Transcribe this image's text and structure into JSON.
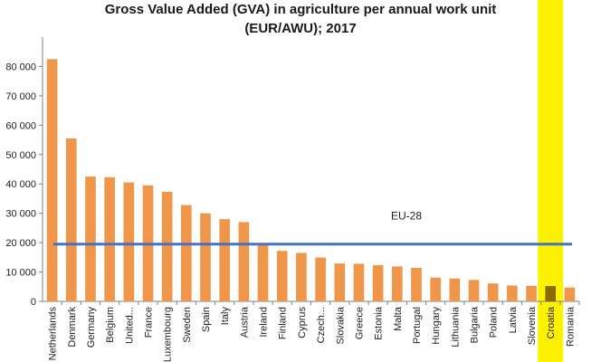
{
  "chart_data": {
    "type": "bar",
    "title_lines": [
      "Gross Value Added (GVA) in agriculture per annual work unit",
      "(EUR/AWU); 2017"
    ],
    "xlabel": "",
    "ylabel": "",
    "ylim": [
      0,
      90000
    ],
    "yticks": [
      "0",
      "10 000",
      "20 000",
      "30 000",
      "40 000",
      "50 000",
      "60 000",
      "70 000",
      "80 000"
    ],
    "ytick_values": [
      0,
      10000,
      20000,
      30000,
      40000,
      50000,
      60000,
      70000,
      80000
    ],
    "categories": [
      "Netherlands",
      "Denmark",
      "Germany",
      "Belgium",
      "United...",
      "France",
      "Luxembourg",
      "Sweden",
      "Spain",
      "Italy",
      "Austria",
      "Ireland",
      "Finland",
      "Cyprus",
      "Czech...",
      "Slovakia",
      "Greece",
      "Estonia",
      "Malta",
      "Portugal",
      "Hungary",
      "Lithuania",
      "Bulgaria",
      "Poland",
      "Latvia",
      "Slovenia",
      "Croatia",
      "Romania"
    ],
    "values": [
      82500,
      55500,
      42500,
      42300,
      40500,
      39500,
      37300,
      32800,
      30000,
      28000,
      27000,
      19300,
      17200,
      16500,
      14900,
      12900,
      12800,
      12300,
      11900,
      11400,
      8100,
      7800,
      7300,
      6100,
      5400,
      5300,
      5200,
      4700
    ],
    "reference_line": {
      "label": "EU-28",
      "value": 19500
    },
    "highlight": "Croatia",
    "colors": {
      "bar": "#F0964B",
      "highlight_band": "#FFF200",
      "highlight_bar": "#8B6B00",
      "reference": "#4472C4",
      "gridline": "#d9d9d9",
      "axis": "#808080"
    },
    "grid": false,
    "legend": "none"
  }
}
